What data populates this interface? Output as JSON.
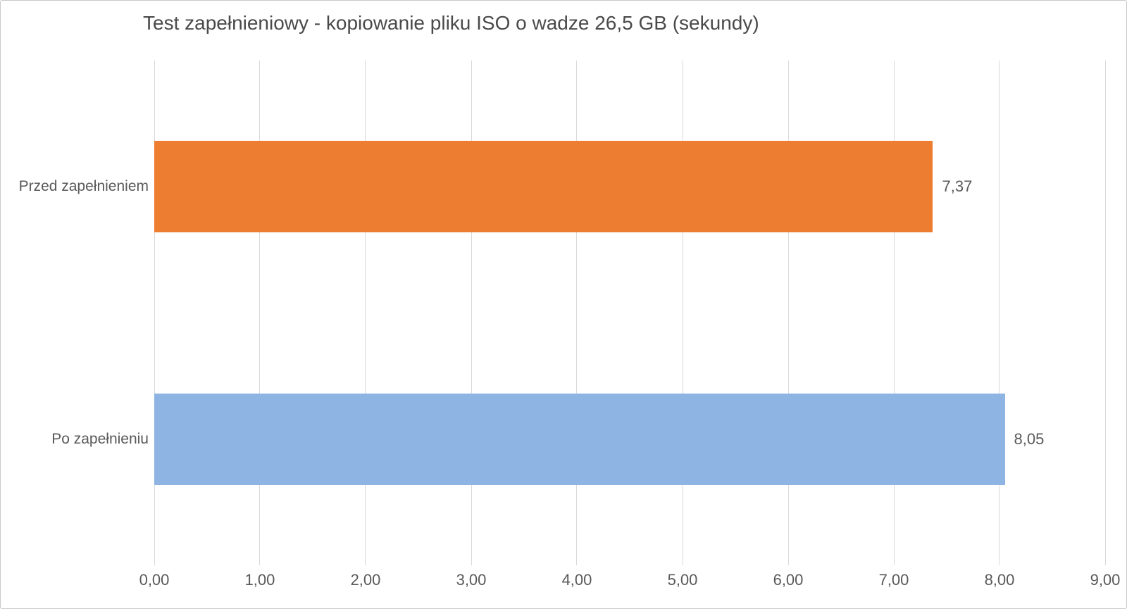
{
  "chart_data": {
    "type": "bar",
    "orientation": "horizontal",
    "title": "Test zapełnieniowy - kopiowanie pliku ISO o wadze 26,5 GB (sekundy)",
    "categories": [
      "Przed zapełnieniem",
      "Po zapełnieniu"
    ],
    "values": [
      7.37,
      8.05
    ],
    "value_labels": [
      "7,37",
      "8,05"
    ],
    "bar_colors": [
      "#ED7D31",
      "#8EB4E3"
    ],
    "xlabel": "",
    "ylabel": "",
    "xlim": [
      0,
      9
    ],
    "x_tick_values": [
      0,
      1,
      2,
      3,
      4,
      5,
      6,
      7,
      8,
      9
    ],
    "x_tick_labels": [
      "0,00",
      "1,00",
      "2,00",
      "3,00",
      "4,00",
      "5,00",
      "6,00",
      "7,00",
      "8,00",
      "9,00"
    ],
    "grid": true,
    "legend": false
  },
  "colors": {
    "background": "#FFFFFF",
    "gridline": "#D9D9D9",
    "title_text": "#4A4A4A",
    "label_text": "#595959",
    "border": "#C9C9C9"
  }
}
